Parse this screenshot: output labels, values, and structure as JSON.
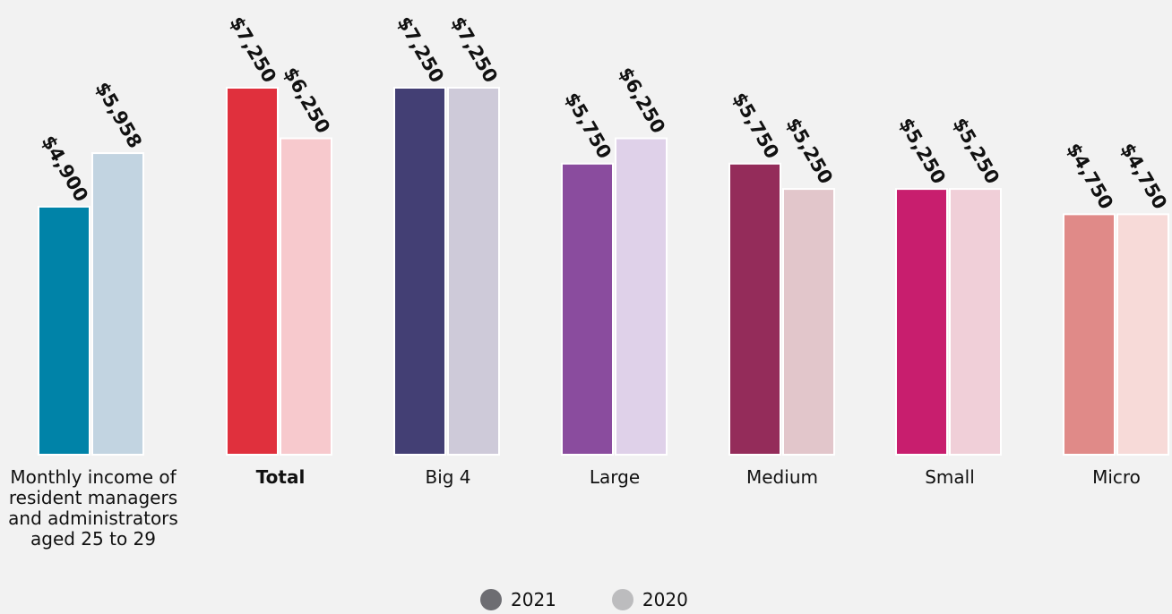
{
  "chart_data": {
    "type": "bar",
    "categories": [
      "Monthly income of resident managers and administrators aged 25 to 29",
      "Total",
      "Big 4",
      "Large",
      "Medium",
      "Small",
      "Micro"
    ],
    "bold_categories": [
      "Total"
    ],
    "series": [
      {
        "name": "2021",
        "values": [
          4900,
          7250,
          7250,
          5750,
          5750,
          5250,
          4750
        ],
        "labels": [
          "$4,900",
          "$7,250",
          "$7,250",
          "$5,750",
          "$5,750",
          "$5,250",
          "$4,750"
        ],
        "colors": [
          "#0083a8",
          "#e0303d",
          "#433f74",
          "#8a4c9e",
          "#942c5a",
          "#c81e6e",
          "#e08a88"
        ]
      },
      {
        "name": "2020",
        "values": [
          5958,
          6250,
          7250,
          6250,
          5250,
          5250,
          4750
        ],
        "labels": [
          "$5,958",
          "$6,250",
          "$7,250",
          "$6,250",
          "$5,250",
          "$5,250",
          "$4,750"
        ],
        "colors": [
          "#c2d4e1",
          "#f7c9cd",
          "#cecad9",
          "#dfd1e9",
          "#e2c6cb",
          "#f0cfd8",
          "#f7dad8"
        ]
      }
    ],
    "legend": {
      "position": "bottom",
      "items": [
        {
          "label": "2021",
          "color": "#6d6d72"
        },
        {
          "label": "2020",
          "color": "#bcbcbe"
        }
      ]
    },
    "title": "",
    "xlabel": "",
    "ylabel": "",
    "ylim": [
      0,
      7250
    ],
    "grid": false
  }
}
